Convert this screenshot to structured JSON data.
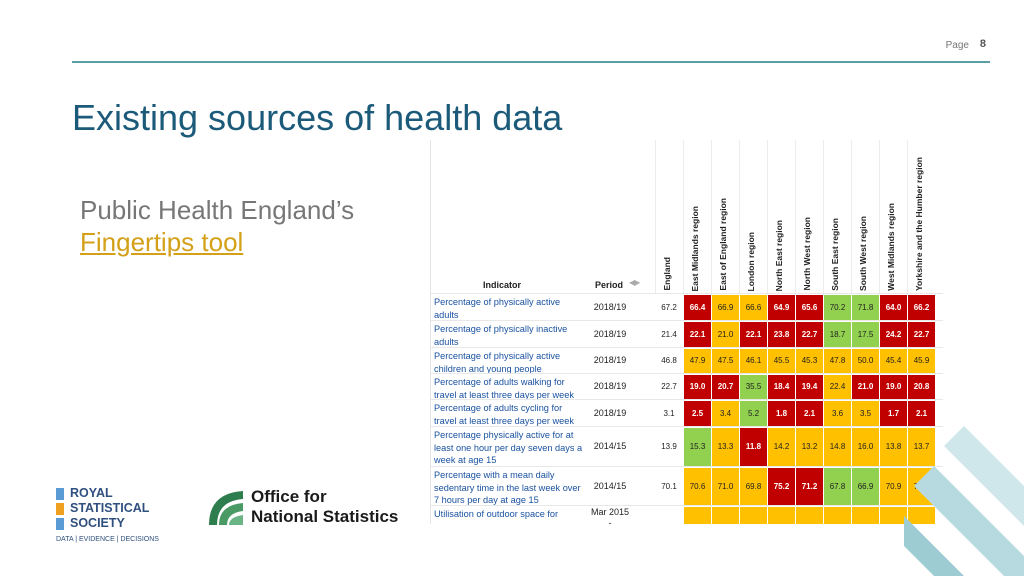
{
  "slide": {
    "page_label": "Page",
    "page_number": "8",
    "title": "Existing sources of health data",
    "subtitle": "Public Health England’s",
    "link_text": "Fingertips tool"
  },
  "table": {
    "indicator_header": "Indicator",
    "period_header": "Period",
    "region_headers": [
      "England",
      "East Midlands region",
      "East of England region",
      "London region",
      "North East region",
      "North West region",
      "South East region",
      "South West region",
      "West Midlands region",
      "Yorkshire and the Humber region"
    ],
    "rows": [
      {
        "indicator": "Percentage of physically active adults",
        "period": "2018/19",
        "england": "67.2",
        "values": [
          "66.4",
          "66.9",
          "66.6",
          "64.9",
          "65.6",
          "70.2",
          "71.8",
          "64.0",
          "66.2"
        ],
        "status": [
          "r",
          "a",
          "a",
          "r",
          "r",
          "g",
          "g",
          "r",
          "r"
        ]
      },
      {
        "indicator": "Percentage of physically inactive adults",
        "period": "2018/19",
        "england": "21.4",
        "values": [
          "22.1",
          "21.0",
          "22.1",
          "23.8",
          "22.7",
          "18.7",
          "17.5",
          "24.2",
          "22.7"
        ],
        "status": [
          "r",
          "a",
          "r",
          "r",
          "r",
          "g",
          "g",
          "r",
          "r"
        ]
      },
      {
        "indicator": "Percentage of physically active children and young people",
        "period": "2018/19",
        "england": "46.8",
        "values": [
          "47.9",
          "47.5",
          "46.1",
          "45.5",
          "45.3",
          "47.8",
          "50.0",
          "45.4",
          "45.9"
        ],
        "status": [
          "a",
          "a",
          "a",
          "a",
          "a",
          "a",
          "a",
          "a",
          "a"
        ]
      },
      {
        "indicator": "Percentage of adults walking for travel at least three days per week",
        "period": "2018/19",
        "england": "22.7",
        "values": [
          "19.0",
          "20.7",
          "35.5",
          "18.4",
          "19.4",
          "22.4",
          "21.0",
          "19.0",
          "20.8"
        ],
        "status": [
          "r",
          "r",
          "g",
          "r",
          "r",
          "a",
          "r",
          "r",
          "r"
        ]
      },
      {
        "indicator": "Percentage of adults cycling for travel at least three days per week",
        "period": "2018/19",
        "england": "3.1",
        "values": [
          "2.5",
          "3.4",
          "5.2",
          "1.8",
          "2.1",
          "3.6",
          "3.5",
          "1.7",
          "2.1"
        ],
        "status": [
          "r",
          "a",
          "g",
          "r",
          "r",
          "a",
          "a",
          "r",
          "r"
        ]
      },
      {
        "indicator": "Percentage physically active for at least one hour per day seven days a week at age 15",
        "period": "2014/15",
        "england": "13.9",
        "values": [
          "15.3",
          "13.3",
          "11.8",
          "14.2",
          "13.2",
          "14.8",
          "16.0",
          "13.8",
          "13.7"
        ],
        "status": [
          "g",
          "a",
          "r",
          "a",
          "a",
          "a",
          "a",
          "a",
          "a"
        ]
      },
      {
        "indicator": "Percentage with a mean daily sedentary time in the last week over 7 hours per day at age 15",
        "period": "2014/15",
        "england": "70.1",
        "values": [
          "70.6",
          "71.0",
          "69.8",
          "75.2",
          "71.2",
          "67.8",
          "66.9",
          "70.9",
          "70.6"
        ],
        "status": [
          "a",
          "a",
          "a",
          "r",
          "r",
          "g",
          "g",
          "a",
          "a"
        ]
      },
      {
        "indicator": "Utilisation of outdoor space for",
        "period": "Mar 2015 -",
        "england": "",
        "values": [
          "",
          "",
          "",
          "",
          "",
          "",
          "",
          "",
          ""
        ],
        "status": [
          "a",
          "a",
          "a",
          "a",
          "a",
          "a",
          "a",
          "a",
          "a"
        ]
      }
    ]
  },
  "logos": {
    "rss_name": [
      "ROYAL",
      "STATISTICAL",
      "SOCIETY"
    ],
    "rss_tagline": "DATA | EVIDENCE | DECISIONS",
    "ons_name": [
      "Office for",
      "National Statistics"
    ]
  },
  "colors": {
    "title": "#1c5a7a",
    "link": "#d4a017",
    "red": "#c00000",
    "amber": "#ffc000",
    "green": "#92d050",
    "teal": "#5b9ea4"
  }
}
